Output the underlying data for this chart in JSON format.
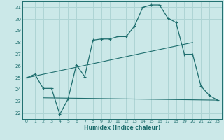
{
  "xlabel": "Humidex (Indice chaleur)",
  "bg_color": "#cbe8e8",
  "grid_color": "#aed4d4",
  "line_color": "#1e6e6e",
  "xlim": [
    -0.5,
    23.5
  ],
  "ylim": [
    21.5,
    31.5
  ],
  "yticks": [
    22,
    23,
    24,
    25,
    26,
    27,
    28,
    29,
    30,
    31
  ],
  "xticks": [
    0,
    1,
    2,
    3,
    4,
    5,
    6,
    7,
    8,
    9,
    10,
    11,
    12,
    13,
    14,
    15,
    16,
    17,
    18,
    19,
    20,
    21,
    22,
    23
  ],
  "curve_x": [
    0,
    1,
    2,
    3,
    4,
    5,
    6,
    7,
    8,
    9,
    10,
    11,
    12,
    13,
    14,
    15,
    16,
    17,
    18,
    19,
    20,
    21,
    22,
    23
  ],
  "curve_y": [
    25.0,
    25.3,
    24.1,
    24.1,
    21.9,
    23.2,
    26.1,
    25.1,
    28.2,
    28.3,
    28.3,
    28.5,
    28.5,
    29.4,
    31.0,
    31.2,
    31.2,
    30.1,
    29.7,
    27.0,
    27.0,
    24.3,
    23.5,
    23.1
  ],
  "line1_x": [
    0,
    20
  ],
  "line1_y": [
    25.0,
    28.0
  ],
  "line2_x": [
    2,
    23
  ],
  "line2_y": [
    23.3,
    23.1
  ]
}
